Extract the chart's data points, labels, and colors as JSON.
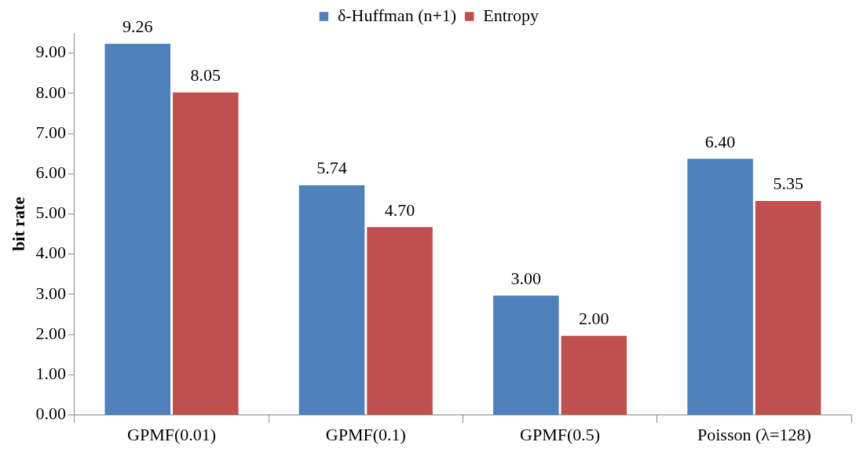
{
  "chart_data": {
    "type": "bar",
    "ylabel": "bit rate",
    "categories": [
      "GPMF(0.01)",
      "GPMF(0.1)",
      "GPMF(0.5)",
      "Poisson (λ=128)"
    ],
    "series": [
      {
        "name": "δ-Huffman (n+1)",
        "color": "#4f81bd",
        "values": [
          9.26,
          5.74,
          3.0,
          6.4
        ],
        "value_labels": [
          "9.26",
          "5.74",
          "3.00",
          "6.40"
        ]
      },
      {
        "name": "Entropy",
        "color": "#c0504d",
        "values": [
          8.05,
          4.7,
          2.0,
          5.35
        ],
        "value_labels": [
          "8.05",
          "4.70",
          "2.00",
          "5.35"
        ]
      }
    ],
    "ylim": [
      0,
      9.5
    ],
    "yticks": [
      {
        "value": 0,
        "label": "0.00"
      },
      {
        "value": 1,
        "label": "1.00"
      },
      {
        "value": 2,
        "label": "2.00"
      },
      {
        "value": 3,
        "label": "3.00"
      },
      {
        "value": 4,
        "label": "4.00"
      },
      {
        "value": 5,
        "label": "5.00"
      },
      {
        "value": 6,
        "label": "6.00"
      },
      {
        "value": 7,
        "label": "7.00"
      },
      {
        "value": 8,
        "label": "8.00"
      },
      {
        "value": 9,
        "label": "9.00"
      }
    ],
    "grid": false,
    "legend": "top"
  }
}
